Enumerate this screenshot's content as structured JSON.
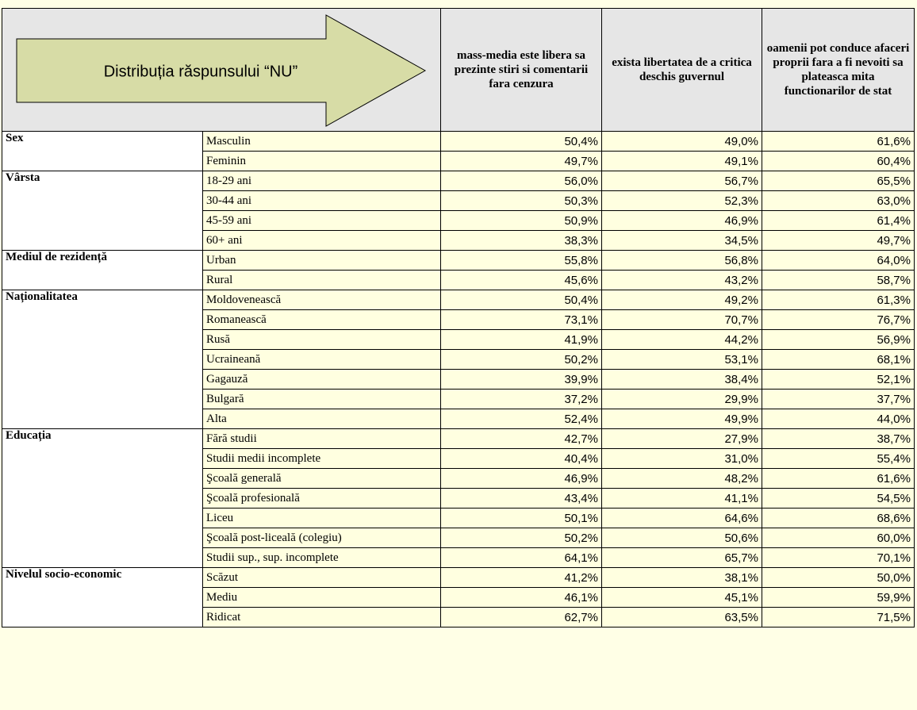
{
  "header": {
    "title": "Distribuția răspunsului “NU”",
    "columns": [
      "mass-media este libera sa prezinte stiri si comentarii fara cenzura",
      "exista libertatea de a critica deschis guvernul",
      "oamenii pot conduce afaceri proprii fara a fi nevoiti sa plateasca mita functionarilor de stat"
    ]
  },
  "groups": [
    {
      "name": "Sex",
      "rows": [
        {
          "label": "Masculin",
          "values": [
            "50,4%",
            "49,0%",
            "61,6%"
          ]
        },
        {
          "label": "Feminin",
          "values": [
            "49,7%",
            "49,1%",
            "60,4%"
          ]
        }
      ]
    },
    {
      "name": "Vârsta",
      "rows": [
        {
          "label": "18-29 ani",
          "values": [
            "56,0%",
            "56,7%",
            "65,5%"
          ]
        },
        {
          "label": "30-44 ani",
          "values": [
            "50,3%",
            "52,3%",
            "63,0%"
          ]
        },
        {
          "label": "45-59 ani",
          "values": [
            "50,9%",
            "46,9%",
            "61,4%"
          ]
        },
        {
          "label": "60+ ani",
          "values": [
            "38,3%",
            "34,5%",
            "49,7%"
          ]
        }
      ]
    },
    {
      "name": "Mediul de rezidență",
      "rows": [
        {
          "label": "Urban",
          "values": [
            "55,8%",
            "56,8%",
            "64,0%"
          ]
        },
        {
          "label": "Rural",
          "values": [
            "45,6%",
            "43,2%",
            "58,7%"
          ]
        }
      ]
    },
    {
      "name": "Naționalitatea",
      "rows": [
        {
          "label": "Moldovenească",
          "values": [
            "50,4%",
            "49,2%",
            "61,3%"
          ]
        },
        {
          "label": "Romanească",
          "values": [
            "73,1%",
            "70,7%",
            "76,7%"
          ]
        },
        {
          "label": "Rusă",
          "values": [
            "41,9%",
            "44,2%",
            "56,9%"
          ]
        },
        {
          "label": "Ucraineană",
          "values": [
            "50,2%",
            "53,1%",
            "68,1%"
          ]
        },
        {
          "label": "Gagauză",
          "values": [
            "39,9%",
            "38,4%",
            "52,1%"
          ]
        },
        {
          "label": "Bulgară",
          "values": [
            "37,2%",
            "29,9%",
            "37,7%"
          ]
        },
        {
          "label": "Alta",
          "values": [
            "52,4%",
            "49,9%",
            "44,0%"
          ]
        }
      ]
    },
    {
      "name": "Educația",
      "rows": [
        {
          "label": "Fără studii",
          "values": [
            "42,7%",
            "27,9%",
            "38,7%"
          ]
        },
        {
          "label": "Studii medii incomplete",
          "values": [
            "40,4%",
            "31,0%",
            "55,4%"
          ]
        },
        {
          "label": "Şcoală generală",
          "values": [
            "46,9%",
            "48,2%",
            "61,6%"
          ]
        },
        {
          "label": "Şcoală profesională",
          "values": [
            "43,4%",
            "41,1%",
            "54,5%"
          ]
        },
        {
          "label": "Liceu",
          "values": [
            "50,1%",
            "64,6%",
            "68,6%"
          ]
        },
        {
          "label": "Şcoală post-liceală (colegiu)",
          "values": [
            "50,2%",
            "50,6%",
            "60,0%"
          ]
        },
        {
          "label": "Studii sup., sup. incomplete",
          "values": [
            "64,1%",
            "65,7%",
            "70,1%"
          ]
        }
      ]
    },
    {
      "name": "Nivelul socio-economic",
      "rows": [
        {
          "label": "Scăzut",
          "values": [
            "41,2%",
            "38,1%",
            "50,0%"
          ]
        },
        {
          "label": "Mediu",
          "values": [
            "46,1%",
            "45,1%",
            "59,9%"
          ]
        },
        {
          "label": "Ridicat",
          "values": [
            "62,7%",
            "63,5%",
            "71,5%"
          ]
        }
      ]
    }
  ]
}
